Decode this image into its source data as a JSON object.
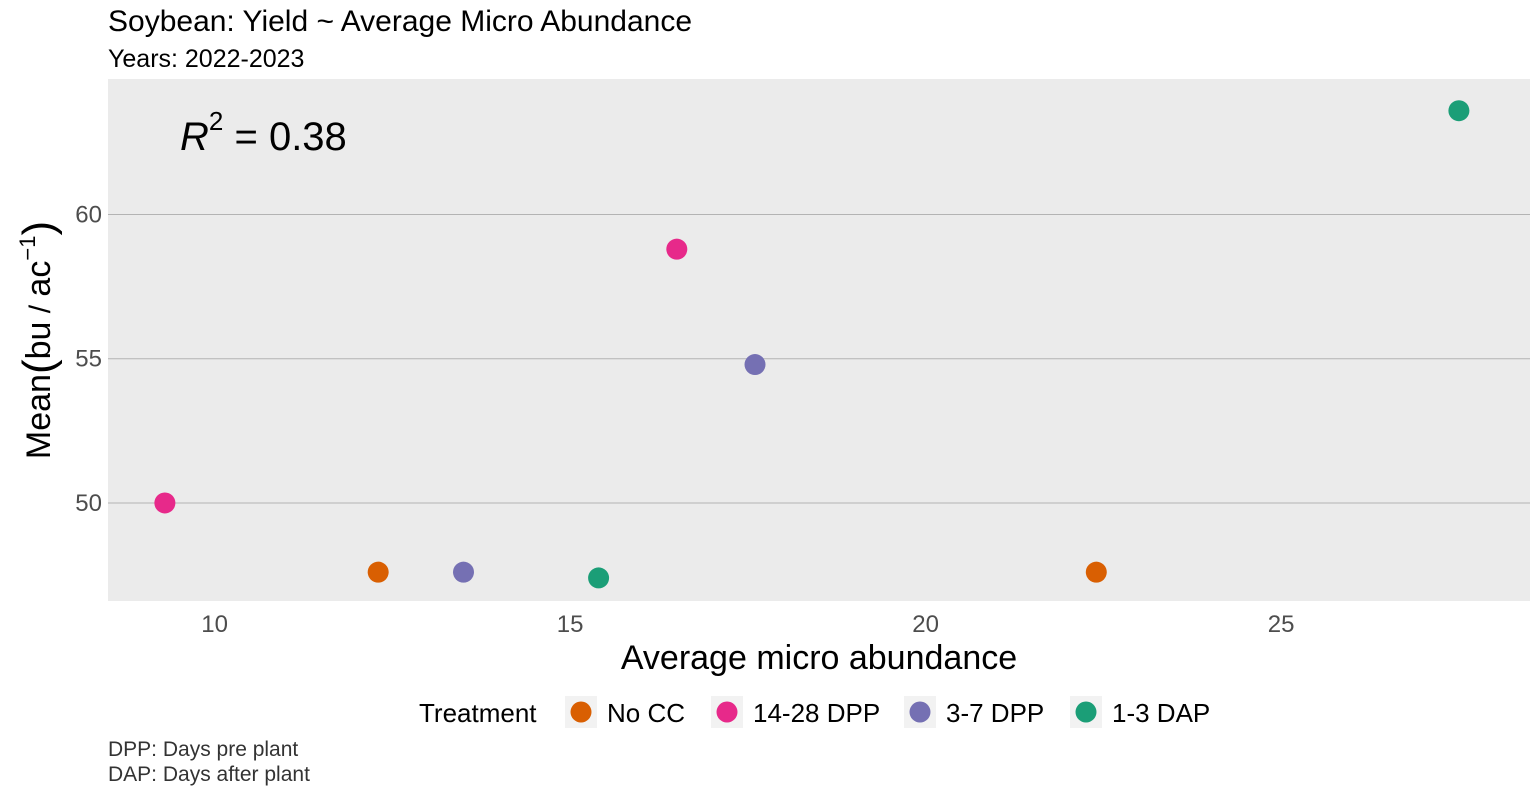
{
  "chart_data": {
    "type": "scatter",
    "title": "Soybean: Yield ~ Average Micro Abundance",
    "subtitle": "Years: 2022-2023",
    "xlabel": "Average micro abundance",
    "ylabel": {
      "prefix": "Mean",
      "unit_num": "bu",
      "unit_den": "ac",
      "exponent": "−1"
    },
    "xlim": [
      8.5,
      28.5
    ],
    "ylim": [
      46.6,
      64.7
    ],
    "x_ticks": [
      10,
      15,
      20,
      25
    ],
    "y_ticks": [
      50,
      55,
      60
    ],
    "grid": "horizontal major",
    "annotation": {
      "symbol": "R",
      "exponent": "2",
      "text": " = 0.38"
    },
    "legend": {
      "title": "Treatment",
      "position": "bottom",
      "items": [
        {
          "label": "No CC",
          "color": "#d95f02"
        },
        {
          "label": "14-28 DPP",
          "color": "#e7298a"
        },
        {
          "label": "3-7 DPP",
          "color": "#7570b3"
        },
        {
          "label": "1-3 DAP",
          "color": "#1b9e77"
        }
      ]
    },
    "series": [
      {
        "name": "No CC",
        "color": "#d95f02",
        "points": [
          {
            "x": 12.3,
            "y": 47.6
          },
          {
            "x": 22.4,
            "y": 47.6
          }
        ]
      },
      {
        "name": "14-28 DPP",
        "color": "#e7298a",
        "points": [
          {
            "x": 9.3,
            "y": 50.0
          },
          {
            "x": 16.5,
            "y": 58.8
          }
        ]
      },
      {
        "name": "3-7 DPP",
        "color": "#7570b3",
        "points": [
          {
            "x": 13.5,
            "y": 47.6
          },
          {
            "x": 17.6,
            "y": 54.8
          }
        ]
      },
      {
        "name": "1-3 DAP",
        "color": "#1b9e77",
        "points": [
          {
            "x": 15.4,
            "y": 47.4
          },
          {
            "x": 27.5,
            "y": 63.6
          }
        ]
      }
    ]
  },
  "caption": [
    "DPP: Days pre plant",
    "DAP: Days after plant"
  ],
  "colors": {
    "panel_background": "#ebebeb",
    "gridline": "#b3b3b3"
  }
}
